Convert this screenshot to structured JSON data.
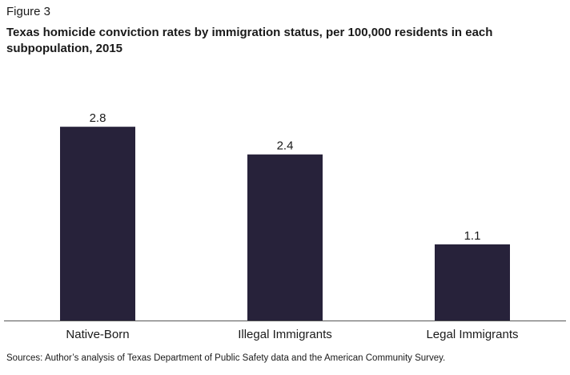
{
  "figure_label": "Figure 3",
  "source_note": "Sources: Author’s analysis of Texas Department of Public Safety data and the American Community Survey.",
  "colors": {
    "bar": "#27223a",
    "axis": "#555555",
    "text": "#1a1a1a"
  },
  "chart_data": {
    "type": "bar",
    "title": "Texas homicide conviction rates by immigration status, per 100,000 residents in each subpopulation, 2015",
    "xlabel": "",
    "ylabel": "",
    "categories": [
      "Native-Born",
      "Illegal Immigrants",
      "Legal Immigrants"
    ],
    "values": [
      2.8,
      2.4,
      1.1
    ],
    "data_labels": [
      "2.8",
      "2.4",
      "1.1"
    ],
    "ylim": [
      0,
      3.3
    ],
    "grid": false,
    "legend": "none"
  }
}
